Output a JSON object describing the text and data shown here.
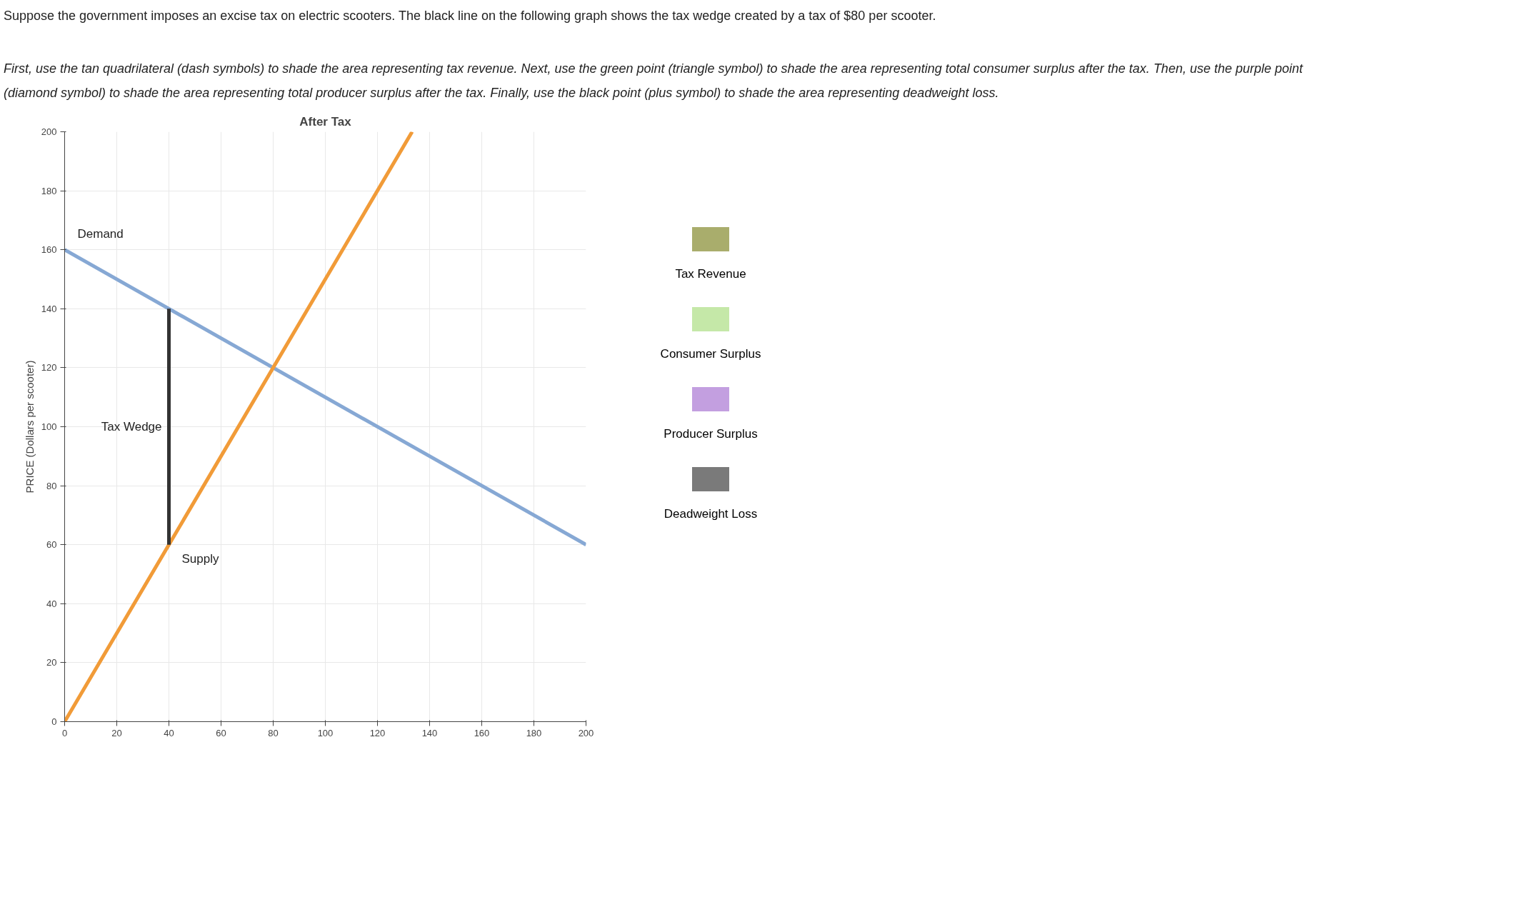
{
  "chart_data": {
    "type": "line",
    "title": "After Tax",
    "subtitle": "Suppose the government imposes an excise tax on electric scooters. The black line on the following graph shows the tax wedge created by a tax of $80 per scooter.",
    "ylabel": "PRICE (Dollars per scooter)",
    "series": [
      {
        "name": "Demand",
        "color": "#86a8d4",
        "x": [
          0,
          200
        ],
        "values": [
          160,
          60
        ]
      },
      {
        "name": "Supply",
        "color": "#f19b38",
        "x": [
          0,
          40,
          133.3
        ],
        "values": [
          0,
          60,
          200
        ]
      },
      {
        "name": "Tax Wedge",
        "color": "#333333",
        "x": [
          40,
          40
        ],
        "values": [
          60,
          140
        ]
      }
    ],
    "xlim": [
      0,
      200
    ],
    "ylim": [
      0,
      200
    ],
    "xticks": [
      0,
      20,
      40,
      60,
      80,
      100,
      120,
      140,
      160,
      180,
      200
    ],
    "yticks": [
      0,
      20,
      40,
      60,
      80,
      100,
      120,
      140,
      160,
      180,
      200
    ],
    "grid": true,
    "annotations": [
      "First, use the tan quadrilateral (dash symbols) to shade the area representing tax revenue. Next, use the green point (triangle symbol) to shade the area representing total consumer surplus after the tax. Then, use the purple point (diamond symbol) to shade the area representing total producer surplus after the tax. Finally, use the black point (plus symbol) to shade the area representing deadweight loss.",
      "Tax Revenue",
      "Consumer Surplus",
      "Producer Surplus",
      "Deadweight Loss"
    ]
  }
}
